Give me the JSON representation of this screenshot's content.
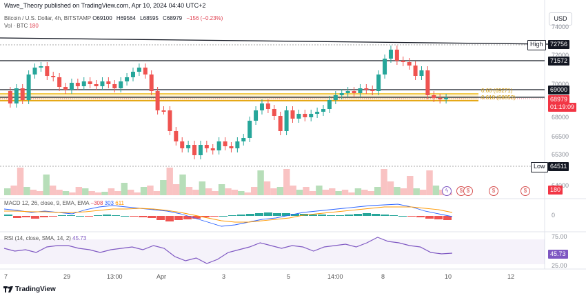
{
  "header": {
    "publisher": "Wave_Theory published on TradingView.com, Apr 10, 2024 04:40 UTC+2"
  },
  "symbol": {
    "name": "Bitcoin / U.S. Dollar, 4h, BITSTAMP",
    "open": "O69100",
    "high": "H69564",
    "low": "L68595",
    "close": "C68979",
    "change": "−156 (−0.23%)"
  },
  "volume": {
    "label": "Vol · BTC",
    "value": "180"
  },
  "currency": "USD",
  "price_axis": [
    "74000",
    "72000",
    "70000",
    "68000",
    "66500",
    "65300",
    "64000"
  ],
  "tags": {
    "high_label": "High",
    "high_value": "72756",
    "res1": "71572",
    "level": "69000",
    "last": "68979",
    "countdown": "01:19:09",
    "low_label": "Low",
    "low_value": "64511",
    "vol_last": "180"
  },
  "fib": {
    "f1": "0.60 (69271)",
    "f2": "0.618 (68852)"
  },
  "macd": {
    "label": "MACD 12, 26, close, 9, EMA, EMA",
    "hist": "−308",
    "macd": "303",
    "signal": "611",
    "axis_zero": "0"
  },
  "rsi": {
    "label": "RSI (14, close, SMA, 14, 2)",
    "value": "45.73",
    "axis_top": "75.00",
    "axis_bottom": "25.00"
  },
  "time_axis": [
    "7",
    "29",
    "13:00",
    "Apr",
    "3",
    "5",
    "14:00",
    "8",
    "10",
    "12"
  ],
  "branding": "TradingView",
  "colors": {
    "up": "#26a69a",
    "down": "#ef5350",
    "fib": "#f2c94c",
    "rsi": "#7e57c2"
  },
  "icons": [
    "usd-event-icon",
    "tradingview-logo-icon"
  ]
}
